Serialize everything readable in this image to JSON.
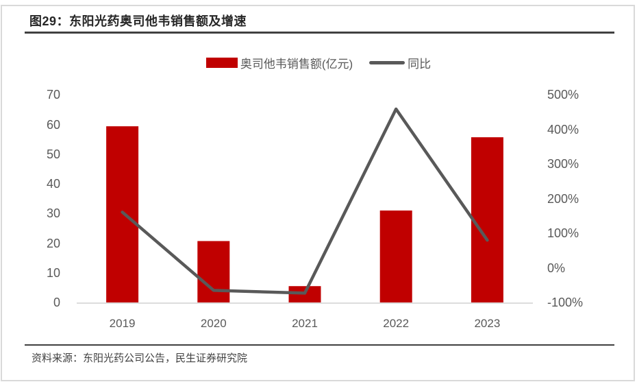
{
  "figure": {
    "title": "图29：东阳光药奥司他韦销售额及增速",
    "source": "资料来源：东阳光药公司公告，民生证券研究院"
  },
  "colors": {
    "bar": "#c00000",
    "line": "#595959",
    "title_text": "#262626",
    "axis_text": "#595959",
    "rule": "#404040",
    "baseline": "#dcdcdc",
    "border": "#d9d9d9"
  },
  "chart_data": {
    "type": "bar+line",
    "title": "图29：东阳光药奥司他韦销售额及增速",
    "categories": [
      "2019",
      "2020",
      "2021",
      "2022",
      "2023"
    ],
    "series": [
      {
        "name": "奥司他韦销售额(亿元)",
        "type": "bar",
        "axis": "left",
        "color": "#c00000",
        "values": [
          59.4,
          20.7,
          5.5,
          31.0,
          55.7
        ]
      },
      {
        "name": "同比",
        "type": "line",
        "axis": "right",
        "color": "#595959",
        "unit": "%",
        "values": [
          161,
          -65,
          -73,
          459,
          80
        ]
      }
    ],
    "left_axis": {
      "min": 0,
      "max": 70,
      "ticks": [
        70,
        60,
        50,
        40,
        30,
        20,
        10,
        0
      ]
    },
    "right_axis": {
      "min": -100,
      "max": 500,
      "suffix": "%",
      "ticks": [
        500,
        400,
        300,
        200,
        100,
        0,
        -100
      ]
    },
    "grid": false,
    "legend_position": "top-center"
  }
}
